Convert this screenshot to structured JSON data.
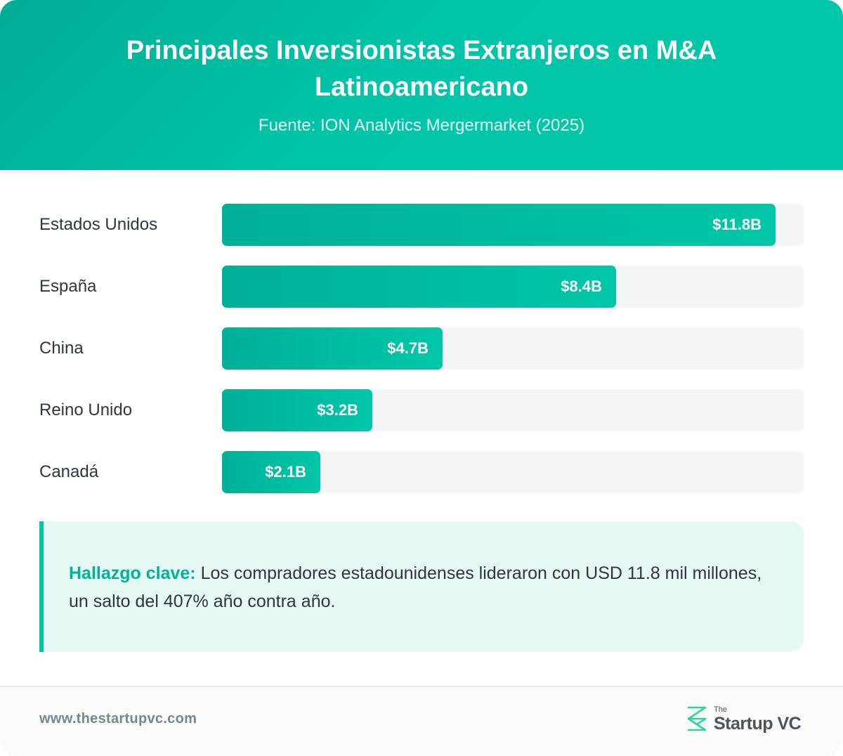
{
  "header": {
    "title": "Principales Inversionistas Extranjeros en M&A Latinoamericano",
    "subtitle": "Fuente: ION Analytics Mergermarket (2025)"
  },
  "chart_data": {
    "type": "bar",
    "orientation": "horizontal",
    "title": "Principales Inversionistas Extranjeros en M&A Latinoamericano",
    "subtitle": "Fuente: ION Analytics Mergermarket (2025)",
    "categories": [
      "Estados Unidos",
      "España",
      "China",
      "Reino Unido",
      "Canadá"
    ],
    "values": [
      11.8,
      8.4,
      4.7,
      3.2,
      2.1
    ],
    "value_labels": [
      "$11.8B",
      "$8.4B",
      "$4.7B",
      "$3.2B",
      "$2.1B"
    ],
    "unit": "USD billions",
    "xlim": [
      0,
      12.4
    ],
    "grid": false,
    "legend": "none",
    "colors": {
      "bar": "#00bfa5",
      "track": "#f3f4f5"
    }
  },
  "insight": {
    "label": "Hallazgo clave:",
    "text": " Los compradores estadounidenses lideraron con USD 11.8 mil millones, un salto del 407% año contra año."
  },
  "footer": {
    "url": "www.thestartupvc.com",
    "logo_small": "The",
    "logo_name": "Startup VC",
    "logo_icon": "startupvc-logo-icon"
  },
  "colors": {
    "brand": "#00c4a7",
    "brand_dark": "#00ad93",
    "insight_background": "#e6f8f3",
    "text": "#2f3640"
  }
}
